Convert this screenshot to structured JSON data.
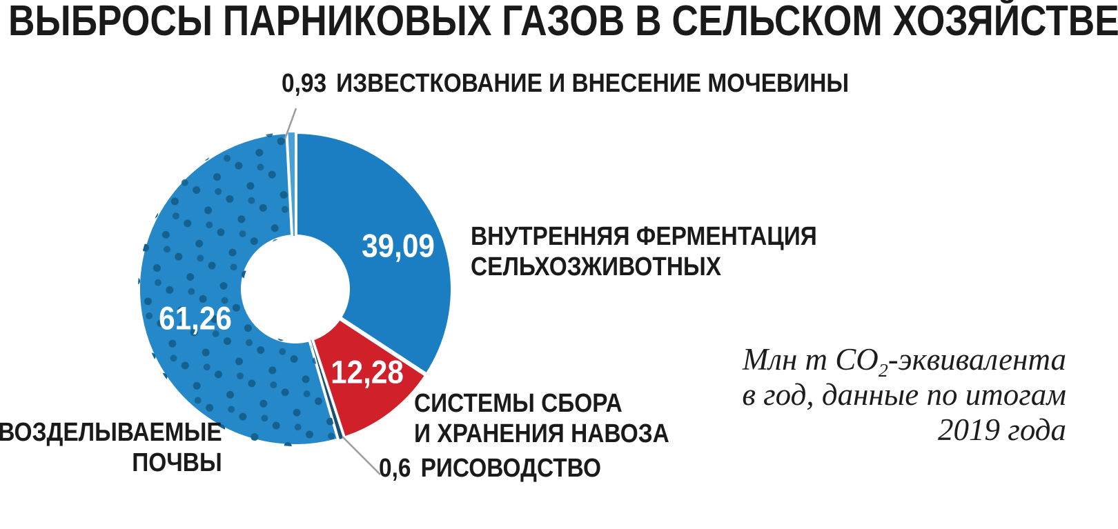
{
  "title": "ВЫБРОСЫ ПАРНИКОВЫХ ГАЗОВ В СЕЛЬСКОМ ХОЗЯЙСТВЕ",
  "note": {
    "line1_pre": "Млн т CO",
    "line1_sub": "2",
    "line1_post": "-эквивалента",
    "line2": "в год, данные по итогам",
    "line3": "2019 года"
  },
  "labels": {
    "liming": "ИЗВЕСТКОВАНИЕ И ВНЕСЕНИЕ МОЧЕВИНЫ",
    "fermentation_l1": "ВНУТРЕННЯЯ ФЕРМЕНТАЦИЯ",
    "fermentation_l2": "СЕЛЬХОЗЖИВОТНЫХ",
    "manure_l1": "СИСТЕМЫ СБОРА",
    "manure_l2": "И ХРАНЕНИЯ НАВОЗА",
    "rice": "РИСОВОДСТВО",
    "soils_l1": "ВОЗДЕЛЫВАЕМЫЕ",
    "soils_l2": "ПОЧВЫ"
  },
  "chart_data": {
    "type": "pie",
    "title": "ВЫБРОСЫ ПАРНИКОВЫХ ГАЗОВ В СЕЛЬСКОМ ХОЗЯЙСТВЕ",
    "unit": "Млн т CO2-эквивалента в год, данные по итогам 2019 года",
    "start_angle_deg": 0,
    "direction": "clockwise",
    "inner_radius_ratio": 0.33,
    "segments": [
      {
        "id": "fermentation",
        "label": "ВНУТРЕННЯЯ ФЕРМЕНТАЦИЯ СЕЛЬХОЗЖИВОТНЫХ",
        "value": 39.09,
        "display": "39,09",
        "color": "#1b7ec2"
      },
      {
        "id": "manure",
        "label": "СИСТЕМЫ СБОРА И ХРАНЕНИЯ НАВОЗА",
        "value": 12.28,
        "display": "12,28",
        "color": "#d0202a"
      },
      {
        "id": "rice",
        "label": "РИСОВОДСТВО",
        "value": 0.6,
        "display": "0,6",
        "color": "#1b4f70"
      },
      {
        "id": "soils",
        "label": "ВОЗДЕЛЫВАЕМЫЕ ПОЧВЫ",
        "value": 61.26,
        "display": "61,26",
        "color": "#2488c9",
        "pattern": "dots"
      },
      {
        "id": "liming",
        "label": "ИЗВЕСТКОВАНИЕ И ВНЕСЕНИЕ МОЧЕВИНЫ",
        "value": 0.93,
        "display": "0,93",
        "color": "#49a0d6"
      }
    ]
  }
}
